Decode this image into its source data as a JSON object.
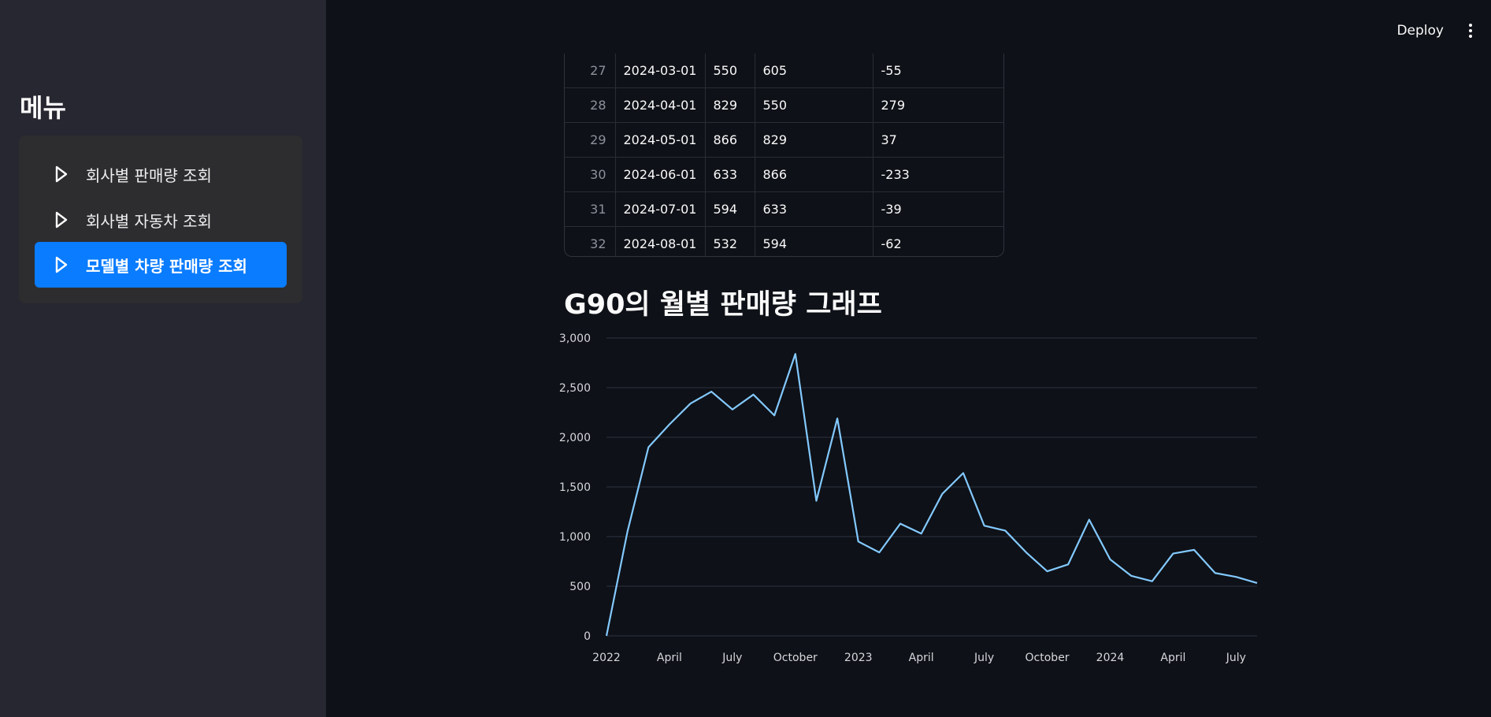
{
  "sidebar": {
    "title": "메뉴",
    "items": [
      {
        "label": "회사별 판매량 조회",
        "active": false
      },
      {
        "label": "회사별 자동차 조회",
        "active": false
      },
      {
        "label": "모델별 차량 판매량 조회",
        "active": true
      }
    ]
  },
  "header": {
    "deploy_label": "Deploy"
  },
  "table": {
    "rows": [
      {
        "index": "27",
        "date": "2024-03-01",
        "sales": "550",
        "prev": "605",
        "diff": "-55"
      },
      {
        "index": "28",
        "date": "2024-04-01",
        "sales": "829",
        "prev": "550",
        "diff": "279"
      },
      {
        "index": "29",
        "date": "2024-05-01",
        "sales": "866",
        "prev": "829",
        "diff": "37"
      },
      {
        "index": "30",
        "date": "2024-06-01",
        "sales": "633",
        "prev": "866",
        "diff": "-233"
      },
      {
        "index": "31",
        "date": "2024-07-01",
        "sales": "594",
        "prev": "633",
        "diff": "-39"
      },
      {
        "index": "32",
        "date": "2024-08-01",
        "sales": "532",
        "prev": "594",
        "diff": "-62"
      }
    ]
  },
  "graph_title": "G90의 월별 판매량 그래프",
  "chart_data": {
    "type": "line",
    "title": "",
    "xlabel": "",
    "ylabel": "",
    "ylim": [
      0,
      3000
    ],
    "yticks": [
      "0",
      "500",
      "1,000",
      "1,500",
      "2,000",
      "2,500",
      "3,000"
    ],
    "xticks": [
      "2022",
      "April",
      "July",
      "October",
      "2023",
      "April",
      "July",
      "October",
      "2024",
      "April",
      "July"
    ],
    "grid": true,
    "color": "#83c9ff",
    "x": [
      "2022-01",
      "2022-02",
      "2022-03",
      "2022-04",
      "2022-05",
      "2022-06",
      "2022-07",
      "2022-08",
      "2022-09",
      "2022-10",
      "2022-11",
      "2022-12",
      "2023-01",
      "2023-02",
      "2023-03",
      "2023-04",
      "2023-05",
      "2023-06",
      "2023-07",
      "2023-08",
      "2023-09",
      "2023-10",
      "2023-11",
      "2023-12",
      "2024-01",
      "2024-02",
      "2024-03",
      "2024-04",
      "2024-05",
      "2024-06",
      "2024-07",
      "2024-08"
    ],
    "values": [
      0,
      1050,
      1900,
      2130,
      2340,
      2460,
      2280,
      2430,
      2220,
      2840,
      1360,
      2190,
      950,
      840,
      1130,
      1030,
      1430,
      1640,
      1110,
      1060,
      840,
      650,
      720,
      1170,
      770,
      605,
      550,
      829,
      866,
      633,
      594,
      532
    ]
  }
}
